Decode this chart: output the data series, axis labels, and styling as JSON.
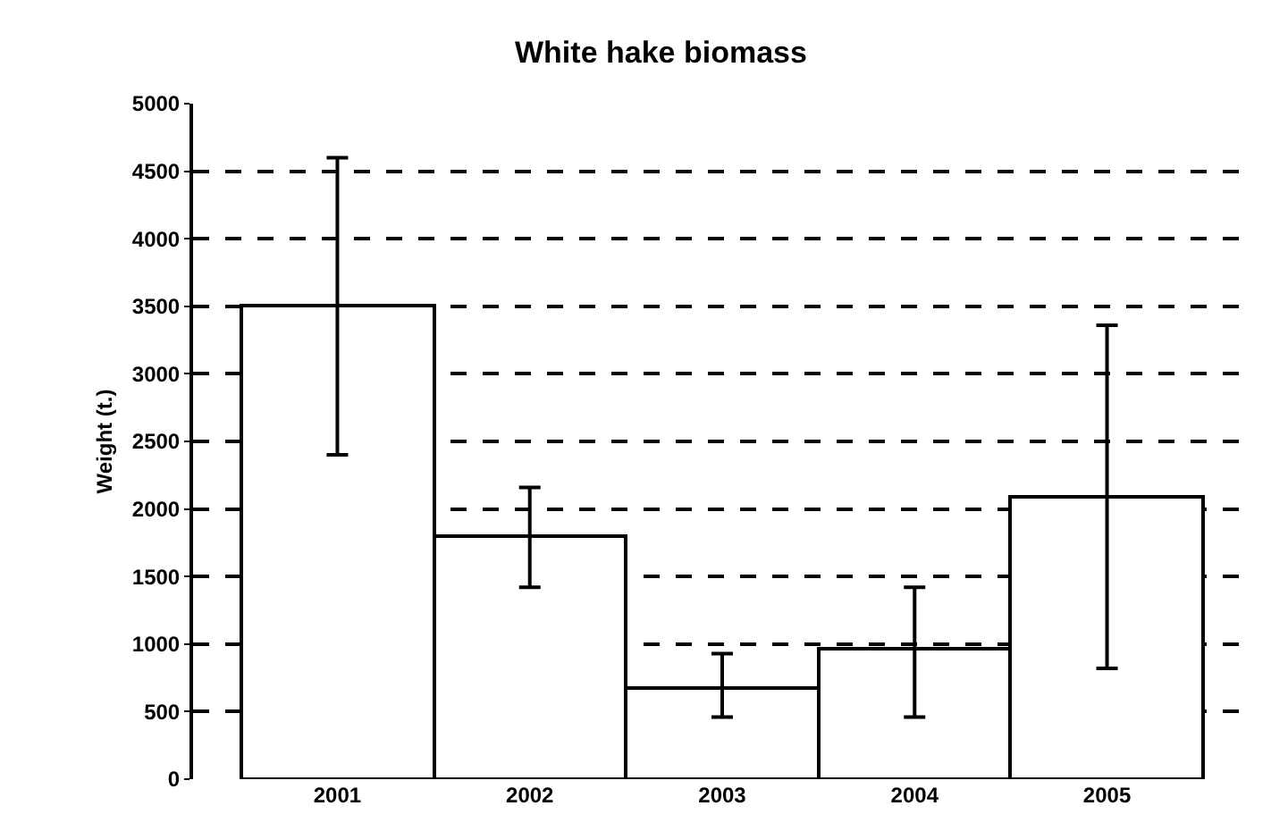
{
  "chart_data": {
    "type": "bar",
    "title": "White hake biomass",
    "ylabel": "Weight (t.)",
    "categories": [
      "2001",
      "2002",
      "2003",
      "2004",
      "2005"
    ],
    "values": [
      3500,
      1800,
      680,
      960,
      2090
    ],
    "errors": [
      [
        2400,
        4600
      ],
      [
        1420,
        2160
      ],
      [
        460,
        930
      ],
      [
        460,
        1420
      ],
      [
        820,
        3360
      ]
    ],
    "color": "#ffffff",
    "ylim": [
      0,
      5000
    ],
    "yticks": [
      0,
      500,
      1000,
      1500,
      2000,
      2500,
      3000,
      3500,
      4000,
      4500,
      5000
    ],
    "grid": "y",
    "legend": false
  }
}
